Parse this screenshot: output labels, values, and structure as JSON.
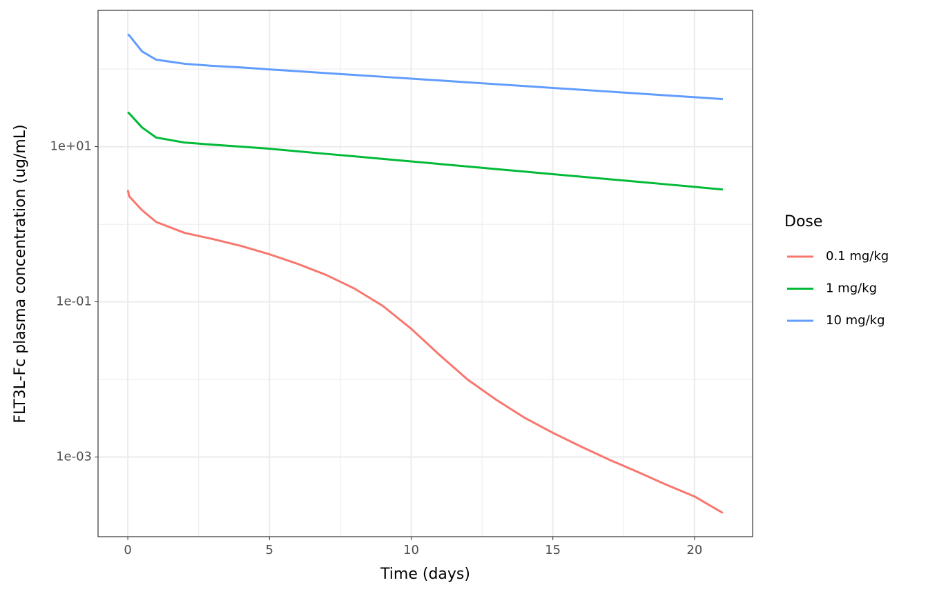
{
  "chart_data": {
    "type": "line",
    "x_label": "Time (days)",
    "y_label": "FLT3L-Fc plasma concentration (ug/mL)",
    "x": [
      0,
      0.05,
      0.5,
      1,
      2,
      3,
      4,
      5,
      6,
      7,
      8,
      9,
      10,
      11,
      12,
      13,
      14,
      15,
      16,
      17,
      18,
      19,
      20,
      21
    ],
    "series": [
      {
        "name": "0.1 mg/kg",
        "color": "#F8766D",
        "values": [
          2.76,
          2.29,
          1.52,
          1.07,
          0.774,
          0.644,
          0.525,
          0.41,
          0.308,
          0.222,
          0.148,
          0.0885,
          0.045,
          0.0207,
          0.0099,
          0.00547,
          0.00321,
          0.00205,
          0.00136,
          0.00092,
          0.00064,
          0.00044,
          0.00031,
          0.00019
        ]
      },
      {
        "name": "1 mg/kg",
        "color": "#00BA38",
        "values": [
          27.8,
          26.8,
          17.7,
          13.1,
          11.3,
          10.6,
          10.0,
          9.4,
          8.7,
          8.07,
          7.5,
          6.95,
          6.45,
          5.98,
          5.55,
          5.14,
          4.77,
          4.42,
          4.1,
          3.8,
          3.53,
          3.27,
          3.03,
          2.8
        ]
      },
      {
        "name": "10 mg/kg",
        "color": "#619CFF",
        "values": [
          281,
          272,
          169,
          132,
          117,
          110,
          105,
          99,
          93.8,
          88.7,
          84,
          79.5,
          75.3,
          71.3,
          67.4,
          63.8,
          60.4,
          57.1,
          54.1,
          51.2,
          48.4,
          45.8,
          43.4,
          41
        ]
      }
    ],
    "xlim": [
      -1.05,
      22.05
    ],
    "xticks": [
      0,
      5,
      10,
      15,
      20
    ],
    "x_minor_ticks": [
      2.5,
      7.5,
      12.5,
      17.5
    ],
    "ylim": [
      9.4e-05,
      571
    ],
    "y_log": true,
    "yticks": [
      {
        "value": 0.001,
        "label": "1e-03"
      },
      {
        "value": 0.1,
        "label": "1e-01"
      },
      {
        "value": 10,
        "label": "1e+01"
      }
    ],
    "y_minor_ticks": [
      0.01,
      1,
      100
    ],
    "grid": true,
    "legend_title": "Dose",
    "legend_position": "right"
  }
}
